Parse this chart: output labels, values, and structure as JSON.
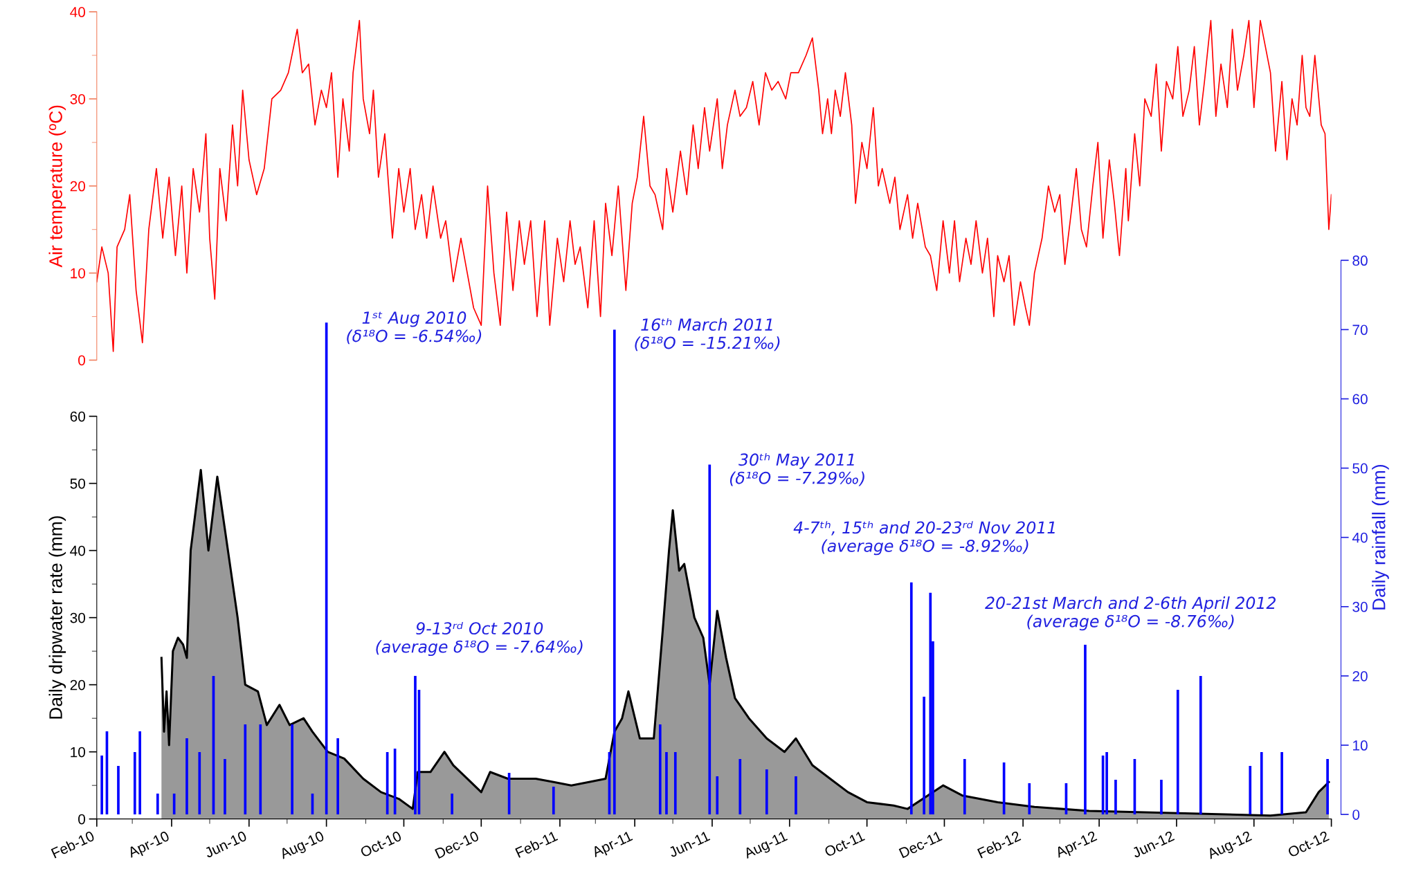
{
  "chart_data": [
    {
      "type": "line",
      "ylabel": "Air temperature (ºC)",
      "tick_labels": "y",
      "xlim": [
        "2010-02-01",
        "2012-10-01"
      ],
      "ylim": [
        0,
        40
      ],
      "yticks": [
        0,
        10,
        20,
        30,
        40
      ],
      "series": [
        {
          "color": "#ff0000",
          "x": [
            "2010-02-01",
            "2010-02-05",
            "2010-02-10",
            "2010-02-14",
            "2010-02-17",
            "2010-02-23",
            "2010-02-27",
            "2010-03-04",
            "2010-03-09",
            "2010-03-14",
            "2010-03-20",
            "2010-03-25",
            "2010-03-30",
            "2010-04-04",
            "2010-04-09",
            "2010-04-13",
            "2010-04-18",
            "2010-04-23",
            "2010-04-28",
            "2010-05-01",
            "2010-05-05",
            "2010-05-09",
            "2010-05-14",
            "2010-05-19",
            "2010-05-23",
            "2010-05-27",
            "2010-06-01",
            "2010-06-07",
            "2010-06-13",
            "2010-06-19",
            "2010-06-26",
            "2010-07-02",
            "2010-07-09",
            "2010-07-13",
            "2010-07-18",
            "2010-07-23",
            "2010-07-28",
            "2010-08-01",
            "2010-08-05",
            "2010-08-10",
            "2010-08-14",
            "2010-08-19",
            "2010-08-22",
            "2010-08-27",
            "2010-08-30",
            "2010-09-04",
            "2010-09-07",
            "2010-09-11",
            "2010-09-16",
            "2010-09-22",
            "2010-09-27",
            "2010-10-01",
            "2010-10-06",
            "2010-10-10",
            "2010-10-15",
            "2010-10-19",
            "2010-10-24",
            "2010-10-30",
            "2010-11-03",
            "2010-11-09",
            "2010-11-15",
            "2010-11-20",
            "2010-11-25",
            "2010-12-01",
            "2010-12-06",
            "2010-12-11",
            "2010-12-16",
            "2010-12-21",
            "2010-12-26",
            "2010-12-31",
            "2011-01-04",
            "2011-01-09",
            "2011-01-14",
            "2011-01-20",
            "2011-01-24",
            "2011-01-30",
            "2011-02-04",
            "2011-02-09",
            "2011-02-13",
            "2011-02-17",
            "2011-02-23",
            "2011-02-28",
            "2011-03-05",
            "2011-03-09",
            "2011-03-14",
            "2011-03-19",
            "2011-03-25",
            "2011-03-30",
            "2011-04-03",
            "2011-04-08",
            "2011-04-13",
            "2011-04-17",
            "2011-04-23",
            "2011-04-26",
            "2011-05-01",
            "2011-05-07",
            "2011-05-12",
            "2011-05-17",
            "2011-05-21",
            "2011-05-26",
            "2011-05-30",
            "2011-06-05",
            "2011-06-09",
            "2011-06-13",
            "2011-06-19",
            "2011-06-23",
            "2011-06-28",
            "2011-07-03",
            "2011-07-08",
            "2011-07-13",
            "2011-07-18",
            "2011-07-23",
            "2011-07-29",
            "2011-08-02",
            "2011-08-08",
            "2011-08-14",
            "2011-08-19",
            "2011-08-24",
            "2011-08-27",
            "2011-08-31",
            "2011-09-03",
            "2011-09-06",
            "2011-09-10",
            "2011-09-14",
            "2011-09-19",
            "2011-09-22",
            "2011-09-27",
            "2011-10-01",
            "2011-10-06",
            "2011-10-10",
            "2011-10-13",
            "2011-10-19",
            "2011-10-23",
            "2011-10-27",
            "2011-11-02",
            "2011-11-06",
            "2011-11-10",
            "2011-11-16",
            "2011-11-20",
            "2011-11-25",
            "2011-11-30",
            "2011-12-05",
            "2011-12-09",
            "2011-12-13",
            "2011-12-18",
            "2011-12-22",
            "2011-12-26",
            "2011-12-31",
            "2012-01-04",
            "2012-01-09",
            "2012-01-12",
            "2012-01-17",
            "2012-01-21",
            "2012-01-25",
            "2012-01-30",
            "2012-02-03",
            "2012-02-06",
            "2012-02-10",
            "2012-02-16",
            "2012-02-21",
            "2012-02-26",
            "2012-03-01",
            "2012-03-05",
            "2012-03-10",
            "2012-03-14",
            "2012-03-18",
            "2012-03-22",
            "2012-03-27",
            "2012-03-31",
            "2012-04-04",
            "2012-04-09",
            "2012-04-13",
            "2012-04-17",
            "2012-04-22",
            "2012-04-24",
            "2012-04-29",
            "2012-05-03",
            "2012-05-07",
            "2012-05-12",
            "2012-05-16",
            "2012-05-20",
            "2012-05-24",
            "2012-05-29",
            "2012-06-02",
            "2012-06-06",
            "2012-06-11",
            "2012-06-15",
            "2012-06-19",
            "2012-06-23",
            "2012-06-28",
            "2012-07-02",
            "2012-07-06",
            "2012-07-11",
            "2012-07-15",
            "2012-07-19",
            "2012-07-24",
            "2012-07-28",
            "2012-08-01",
            "2012-08-06",
            "2012-08-10",
            "2012-08-14",
            "2012-08-18",
            "2012-08-23",
            "2012-08-27",
            "2012-08-31",
            "2012-09-04",
            "2012-09-08",
            "2012-09-11",
            "2012-09-14",
            "2012-09-18",
            "2012-09-23",
            "2012-09-26",
            "2012-09-29",
            "2012-10-01"
          ],
          "values": [
            9,
            13,
            10,
            1,
            13,
            15,
            19,
            8,
            2,
            15,
            22,
            14,
            21,
            12,
            20,
            10,
            22,
            17,
            26,
            14,
            7,
            22,
            16,
            27,
            20,
            31,
            23,
            19,
            22,
            30,
            31,
            33,
            38,
            33,
            34,
            27,
            31,
            29,
            33,
            21,
            30,
            24,
            33,
            39,
            30,
            26,
            31,
            21,
            26,
            14,
            22,
            17,
            22,
            15,
            19,
            14,
            20,
            14,
            16,
            9,
            14,
            10,
            6,
            4,
            20,
            10,
            4,
            17,
            8,
            16,
            11,
            16,
            5,
            16,
            4,
            14,
            9,
            16,
            11,
            13,
            6,
            16,
            5,
            18,
            12,
            20,
            8,
            18,
            21,
            28,
            20,
            19,
            15,
            22,
            17,
            24,
            19,
            27,
            22,
            29,
            24,
            30,
            22,
            27,
            31,
            28,
            29,
            32,
            27,
            33,
            31,
            32,
            30,
            33,
            33,
            35,
            37,
            31,
            26,
            30,
            26,
            31,
            28,
            33,
            27,
            18,
            25,
            22,
            29,
            20,
            22,
            18,
            21,
            15,
            19,
            14,
            18,
            13,
            12,
            8,
            16,
            10,
            16,
            9,
            14,
            11,
            16,
            10,
            14,
            5,
            12,
            9,
            12,
            4,
            9,
            6,
            4,
            10,
            14,
            20,
            17,
            19,
            11,
            17,
            22,
            15,
            13,
            20,
            25,
            14,
            23,
            18,
            12,
            22,
            16,
            26,
            20,
            30,
            28,
            34,
            24,
            32,
            30,
            36,
            28,
            31,
            36,
            27,
            32,
            39,
            28,
            34,
            29,
            38,
            31,
            35,
            39,
            29,
            39,
            36,
            33,
            24,
            32,
            23,
            30,
            27,
            35,
            29,
            28,
            35,
            27,
            26,
            15,
            19
          ]
        }
      ]
    },
    {
      "type": "area",
      "ylabel": "Daily dripwater rate (mm)",
      "y2label": "Daily rainfall (mm)",
      "xlim": [
        "2010-02-01",
        "2012-10-01"
      ],
      "xticks": [
        {
          "value": "2010-02-01",
          "label": "Feb-10"
        },
        {
          "value": "2010-04-01",
          "label": "Apr-10"
        },
        {
          "value": "2010-06-01",
          "label": "Jun-10"
        },
        {
          "value": "2010-08-01",
          "label": "Aug-10"
        },
        {
          "value": "2010-10-01",
          "label": "Oct-10"
        },
        {
          "value": "2010-12-01",
          "label": "Dec-10"
        },
        {
          "value": "2011-02-01",
          "label": "Feb-11"
        },
        {
          "value": "2011-04-01",
          "label": "Apr-11"
        },
        {
          "value": "2011-06-01",
          "label": "Jun-11"
        },
        {
          "value": "2011-08-01",
          "label": "Aug-11"
        },
        {
          "value": "2011-10-01",
          "label": "Oct-11"
        },
        {
          "value": "2011-12-01",
          "label": "Dec-11"
        },
        {
          "value": "2012-02-01",
          "label": "Feb-12"
        },
        {
          "value": "2012-04-01",
          "label": "Apr-12"
        },
        {
          "value": "2012-06-01",
          "label": "Jun-12"
        },
        {
          "value": "2012-08-01",
          "label": "Aug-12"
        },
        {
          "value": "2012-10-01",
          "label": "Oct-12"
        }
      ],
      "ylim": [
        0,
        60
      ],
      "yticks": [
        0,
        10,
        20,
        30,
        40,
        50,
        60
      ],
      "y2lim": [
        0,
        80
      ],
      "y2ticks": [
        0,
        10,
        20,
        30,
        40,
        50,
        60,
        70,
        80
      ],
      "series": [
        {
          "color": "#999999",
          "x": [
            "2010-03-24",
            "2010-03-26",
            "2010-03-28",
            "2010-03-30",
            "2010-04-02",
            "2010-04-06",
            "2010-04-10",
            "2010-04-13",
            "2010-04-16",
            "2010-04-24",
            "2010-04-30",
            "2010-05-07",
            "2010-05-23",
            "2010-05-29",
            "2010-06-08",
            "2010-06-15",
            "2010-06-25",
            "2010-07-03",
            "2010-07-14",
            "2010-07-21",
            "2010-08-02",
            "2010-08-15",
            "2010-08-30",
            "2010-09-13",
            "2010-09-27",
            "2010-10-08",
            "2010-10-12",
            "2010-10-22",
            "2010-11-02",
            "2010-11-09",
            "2010-11-20",
            "2010-12-01",
            "2010-12-08",
            "2010-12-22",
            "2011-01-13",
            "2011-01-27",
            "2011-02-10",
            "2011-02-24",
            "2011-03-09",
            "2011-03-16",
            "2011-03-22",
            "2011-03-27",
            "2011-04-05",
            "2011-04-16",
            "2011-04-23",
            "2011-04-28",
            "2011-05-01",
            "2011-05-06",
            "2011-05-10",
            "2011-05-18",
            "2011-05-25",
            "2011-05-30",
            "2011-06-05",
            "2011-06-12",
            "2011-06-19",
            "2011-06-30",
            "2011-07-14",
            "2011-07-28",
            "2011-08-06",
            "2011-08-19",
            "2011-09-02",
            "2011-09-16",
            "2011-10-01",
            "2011-10-22",
            "2011-11-02",
            "2011-11-30",
            "2011-12-15",
            "2012-01-12",
            "2012-02-10",
            "2012-03-24",
            "2012-05-06",
            "2012-06-18",
            "2012-08-14",
            "2012-09-11",
            "2012-09-21",
            "2012-09-29"
          ],
          "values": [
            24,
            13,
            19,
            11,
            25,
            27,
            26,
            24,
            40,
            52,
            40,
            51,
            30,
            20,
            19,
            14,
            17,
            14,
            15,
            13,
            10,
            9,
            6,
            4,
            3,
            1.5,
            7,
            7,
            10,
            8,
            6,
            4,
            7,
            6,
            6,
            5.5,
            5,
            5.5,
            6,
            13,
            15,
            19,
            12,
            12,
            28,
            40,
            46,
            37,
            38,
            30,
            27,
            20,
            31,
            24,
            18,
            15,
            12,
            10,
            12,
            8,
            6,
            4,
            2.5,
            2,
            1.5,
            5,
            3.5,
            2.5,
            1.8,
            1.2,
            1,
            0.8,
            0.5,
            1,
            4,
            5.5
          ]
        },
        {
          "type": "bar",
          "axis": "y2",
          "color": "#0000ff",
          "x": [
            "2010-02-05",
            "2010-02-09",
            "2010-02-18",
            "2010-03-03",
            "2010-03-07",
            "2010-03-21",
            "2010-04-03",
            "2010-04-13",
            "2010-04-23",
            "2010-05-04",
            "2010-05-13",
            "2010-05-29",
            "2010-06-10",
            "2010-07-05",
            "2010-07-21",
            "2010-08-01",
            "2010-08-10",
            "2010-09-18",
            "2010-09-24",
            "2010-10-10",
            "2010-10-13",
            "2010-11-08",
            "2010-12-23",
            "2011-01-27",
            "2011-03-12",
            "2011-03-16",
            "2011-04-21",
            "2011-04-26",
            "2011-05-03",
            "2011-05-30",
            "2011-06-05",
            "2011-06-23",
            "2011-07-14",
            "2011-08-06",
            "2011-11-05",
            "2011-11-15",
            "2011-11-20",
            "2011-11-22",
            "2011-12-17",
            "2012-01-17",
            "2012-02-06",
            "2012-03-06",
            "2012-03-21",
            "2012-04-04",
            "2012-04-07",
            "2012-04-14",
            "2012-04-29",
            "2012-05-20",
            "2012-06-02",
            "2012-06-20",
            "2012-07-29",
            "2012-08-07",
            "2012-08-23",
            "2012-09-28"
          ],
          "values": [
            8.5,
            12,
            7,
            9,
            12,
            3,
            3,
            11,
            9,
            20,
            8,
            13,
            13,
            13,
            3,
            71,
            11,
            9,
            9.5,
            20,
            18,
            3,
            6,
            4,
            9,
            70,
            13,
            9,
            9,
            50.5,
            5.5,
            8,
            6.5,
            5.5,
            33.5,
            17,
            32,
            25,
            8,
            7.5,
            4.5,
            4.5,
            24.5,
            8.5,
            9,
            5,
            8,
            5,
            18,
            20,
            7,
            9,
            9,
            8
          ]
        }
      ],
      "annotations": [
        {
          "text": "1ˢᵗ Aug 2010\n(δ¹⁸O = -6.54‰)",
          "x": "2010-08-01",
          "y": 71
        },
        {
          "text": "16ᵗʰ March 2011\n(δ¹⁸O = -15.21‰)",
          "x": "2011-03-16",
          "y": 70
        },
        {
          "text": "30ᵗʰ May 2011\n(δ¹⁸O = -7.29‰)",
          "x": "2011-05-30",
          "y": 50.5
        },
        "4-7ᵗʰ, 15ᵗʰ and 20-23ʳᵈ Nov 2011\n(average δ¹⁸O = -8.92‰)",
        "20-21st March and 2-6th April 2012\n(average δ¹⁸O = -8.76‰)",
        "9-13ʳᵈ Oct 2010\n(average δ¹⁸O = -7.64‰)"
      ]
    }
  ]
}
